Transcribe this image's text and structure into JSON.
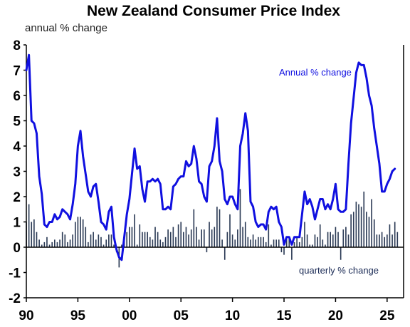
{
  "chart_data": {
    "type": "line",
    "title": "New Zealand Consumer Price Index",
    "subtitle": "annual % change",
    "ylim": [
      -2,
      8
    ],
    "yticks": [
      8,
      7,
      6,
      5,
      4,
      3,
      2,
      1,
      0,
      -1,
      -2
    ],
    "xlim": [
      1990,
      2026.6
    ],
    "xticks": [
      {
        "label": "90",
        "year": 1990
      },
      {
        "label": "95",
        "year": 1995
      },
      {
        "label": "00",
        "year": 2000
      },
      {
        "label": "05",
        "year": 2005
      },
      {
        "label": "10",
        "year": 2010
      },
      {
        "label": "15",
        "year": 2015
      },
      {
        "label": "20",
        "year": 2020
      },
      {
        "label": "25",
        "year": 2025
      }
    ],
    "grid": false,
    "colors": {
      "line": "#1010e0",
      "bars": "#2b3a55",
      "axis": "#000000",
      "line_label": "#1010e0",
      "bar_label": "#1a2a55"
    },
    "series": [
      {
        "name": "Annual % change",
        "kind": "line",
        "points": [
          [
            1990.0,
            7.0
          ],
          [
            1990.25,
            7.6
          ],
          [
            1990.5,
            5.0
          ],
          [
            1990.75,
            4.9
          ],
          [
            1991.0,
            4.5
          ],
          [
            1991.25,
            2.8
          ],
          [
            1991.5,
            2.1
          ],
          [
            1991.75,
            0.9
          ],
          [
            1992.0,
            0.8
          ],
          [
            1992.25,
            1.0
          ],
          [
            1992.5,
            1.0
          ],
          [
            1992.75,
            1.3
          ],
          [
            1993.0,
            1.1
          ],
          [
            1993.25,
            1.2
          ],
          [
            1993.5,
            1.5
          ],
          [
            1993.75,
            1.4
          ],
          [
            1994.0,
            1.3
          ],
          [
            1994.25,
            1.1
          ],
          [
            1994.5,
            1.7
          ],
          [
            1994.75,
            2.5
          ],
          [
            1995.0,
            4.0
          ],
          [
            1995.25,
            4.6
          ],
          [
            1995.5,
            3.6
          ],
          [
            1995.75,
            2.9
          ],
          [
            1996.0,
            2.2
          ],
          [
            1996.25,
            2.0
          ],
          [
            1996.5,
            2.4
          ],
          [
            1996.75,
            2.5
          ],
          [
            1997.0,
            1.8
          ],
          [
            1997.25,
            1.0
          ],
          [
            1997.5,
            0.9
          ],
          [
            1997.75,
            0.7
          ],
          [
            1998.0,
            1.4
          ],
          [
            1998.25,
            1.6
          ],
          [
            1998.5,
            0.4
          ],
          [
            1998.75,
            -0.1
          ],
          [
            1999.0,
            -0.4
          ],
          [
            1999.25,
            -0.5
          ],
          [
            1999.5,
            0.4
          ],
          [
            1999.75,
            1.3
          ],
          [
            2000.0,
            1.9
          ],
          [
            2000.25,
            2.9
          ],
          [
            2000.5,
            3.9
          ],
          [
            2000.75,
            3.1
          ],
          [
            2001.0,
            3.2
          ],
          [
            2001.25,
            2.3
          ],
          [
            2001.5,
            1.8
          ],
          [
            2001.75,
            2.6
          ],
          [
            2002.0,
            2.6
          ],
          [
            2002.25,
            2.7
          ],
          [
            2002.5,
            2.6
          ],
          [
            2002.75,
            2.7
          ],
          [
            2003.0,
            2.5
          ],
          [
            2003.25,
            1.5
          ],
          [
            2003.5,
            1.5
          ],
          [
            2003.75,
            1.6
          ],
          [
            2004.0,
            1.5
          ],
          [
            2004.25,
            2.4
          ],
          [
            2004.5,
            2.5
          ],
          [
            2004.75,
            2.7
          ],
          [
            2005.0,
            2.8
          ],
          [
            2005.25,
            2.8
          ],
          [
            2005.5,
            3.4
          ],
          [
            2005.75,
            3.2
          ],
          [
            2006.0,
            3.3
          ],
          [
            2006.25,
            4.0
          ],
          [
            2006.5,
            3.5
          ],
          [
            2006.75,
            2.6
          ],
          [
            2007.0,
            2.5
          ],
          [
            2007.25,
            2.0
          ],
          [
            2007.5,
            1.8
          ],
          [
            2007.75,
            3.2
          ],
          [
            2008.0,
            3.4
          ],
          [
            2008.25,
            4.0
          ],
          [
            2008.5,
            5.1
          ],
          [
            2008.75,
            3.4
          ],
          [
            2009.0,
            3.0
          ],
          [
            2009.25,
            1.9
          ],
          [
            2009.5,
            1.7
          ],
          [
            2009.75,
            2.0
          ],
          [
            2010.0,
            2.0
          ],
          [
            2010.25,
            1.7
          ],
          [
            2010.5,
            1.5
          ],
          [
            2010.75,
            4.0
          ],
          [
            2011.0,
            4.5
          ],
          [
            2011.25,
            5.3
          ],
          [
            2011.5,
            4.6
          ],
          [
            2011.75,
            1.8
          ],
          [
            2012.0,
            1.6
          ],
          [
            2012.25,
            1.0
          ],
          [
            2012.5,
            0.8
          ],
          [
            2012.75,
            0.9
          ],
          [
            2013.0,
            0.9
          ],
          [
            2013.25,
            0.7
          ],
          [
            2013.5,
            1.4
          ],
          [
            2013.75,
            1.6
          ],
          [
            2014.0,
            1.5
          ],
          [
            2014.25,
            1.6
          ],
          [
            2014.5,
            1.0
          ],
          [
            2014.75,
            0.8
          ],
          [
            2015.0,
            0.1
          ],
          [
            2015.25,
            0.4
          ],
          [
            2015.5,
            0.4
          ],
          [
            2015.75,
            0.1
          ],
          [
            2016.0,
            0.4
          ],
          [
            2016.25,
            0.4
          ],
          [
            2016.5,
            0.4
          ],
          [
            2016.75,
            1.3
          ],
          [
            2017.0,
            2.2
          ],
          [
            2017.25,
            1.7
          ],
          [
            2017.5,
            1.9
          ],
          [
            2017.75,
            1.6
          ],
          [
            2018.0,
            1.1
          ],
          [
            2018.25,
            1.5
          ],
          [
            2018.5,
            1.9
          ],
          [
            2018.75,
            1.9
          ],
          [
            2019.0,
            1.5
          ],
          [
            2019.25,
            1.7
          ],
          [
            2019.5,
            1.5
          ],
          [
            2019.75,
            1.9
          ],
          [
            2020.0,
            2.5
          ],
          [
            2020.25,
            1.5
          ],
          [
            2020.5,
            1.4
          ],
          [
            2020.75,
            1.4
          ],
          [
            2021.0,
            1.5
          ],
          [
            2021.25,
            3.3
          ],
          [
            2021.5,
            4.9
          ],
          [
            2021.75,
            5.9
          ],
          [
            2022.0,
            6.9
          ],
          [
            2022.25,
            7.3
          ],
          [
            2022.5,
            7.2
          ],
          [
            2022.75,
            7.2
          ],
          [
            2023.0,
            6.7
          ],
          [
            2023.25,
            6.0
          ],
          [
            2023.5,
            5.6
          ],
          [
            2023.75,
            4.7
          ],
          [
            2024.0,
            4.0
          ],
          [
            2024.25,
            3.3
          ],
          [
            2024.5,
            2.2
          ],
          [
            2024.75,
            2.2
          ],
          [
            2025.0,
            2.5
          ],
          [
            2025.25,
            2.7
          ],
          [
            2025.5,
            3.0
          ],
          [
            2025.75,
            3.1
          ]
        ]
      },
      {
        "name": "quarterly % change",
        "kind": "bar",
        "x_start": 1990.0,
        "x_step": 0.25,
        "values": [
          1.0,
          1.7,
          1.0,
          1.1,
          0.6,
          0.3,
          0.1,
          0.2,
          0.4,
          0.1,
          0.2,
          0.3,
          0.2,
          0.3,
          0.6,
          0.5,
          0.2,
          0.3,
          0.5,
          1.0,
          1.2,
          1.2,
          1.1,
          0.8,
          0.2,
          0.5,
          0.6,
          0.3,
          0.5,
          0.4,
          0.1,
          0.3,
          0.5,
          0.5,
          0.1,
          -0.2,
          -0.8,
          0.1,
          0.4,
          0.6,
          0.8,
          0.8,
          1.3,
          0.1,
          0.9,
          0.6,
          0.6,
          0.6,
          0.4,
          0.3,
          0.8,
          0.6,
          0.3,
          0.2,
          0.4,
          0.7,
          0.6,
          0.8,
          0.4,
          0.9,
          1.0,
          0.6,
          0.8,
          0.5,
          0.7,
          1.5,
          0.8,
          0.3,
          0.7,
          0.7,
          -0.2,
          1.0,
          0.7,
          0.8,
          1.6,
          1.5,
          0.3,
          -0.5,
          0.6,
          1.3,
          0.5,
          0.3,
          0.7,
          2.3,
          0.8,
          1.0,
          0.4,
          0.3,
          0.5,
          0.3,
          0.4,
          0.4,
          0.4,
          0.2,
          0.9,
          0.1,
          0.3,
          0.3,
          0.3,
          -0.2,
          -0.3,
          0.4,
          0.4,
          -0.5,
          0.2,
          0.4,
          0.2,
          0.4,
          1.0,
          0.5,
          0.1,
          0.1,
          0.5,
          0.4,
          0.9,
          0.3,
          0.1,
          0.6,
          0.6,
          0.5,
          0.8,
          0.6,
          -0.5,
          0.7,
          0.8,
          0.5,
          1.3,
          1.4,
          1.8,
          1.7,
          1.6,
          2.2,
          1.4,
          1.2,
          1.9,
          1.1,
          0.5,
          0.5,
          0.6,
          0.4,
          0.5,
          0.9,
          0.5,
          1.0,
          0.6
        ]
      }
    ],
    "annotations": [
      {
        "text": "Annual % change",
        "series": "line"
      },
      {
        "text": "quarterly % change",
        "series": "bar"
      }
    ]
  }
}
